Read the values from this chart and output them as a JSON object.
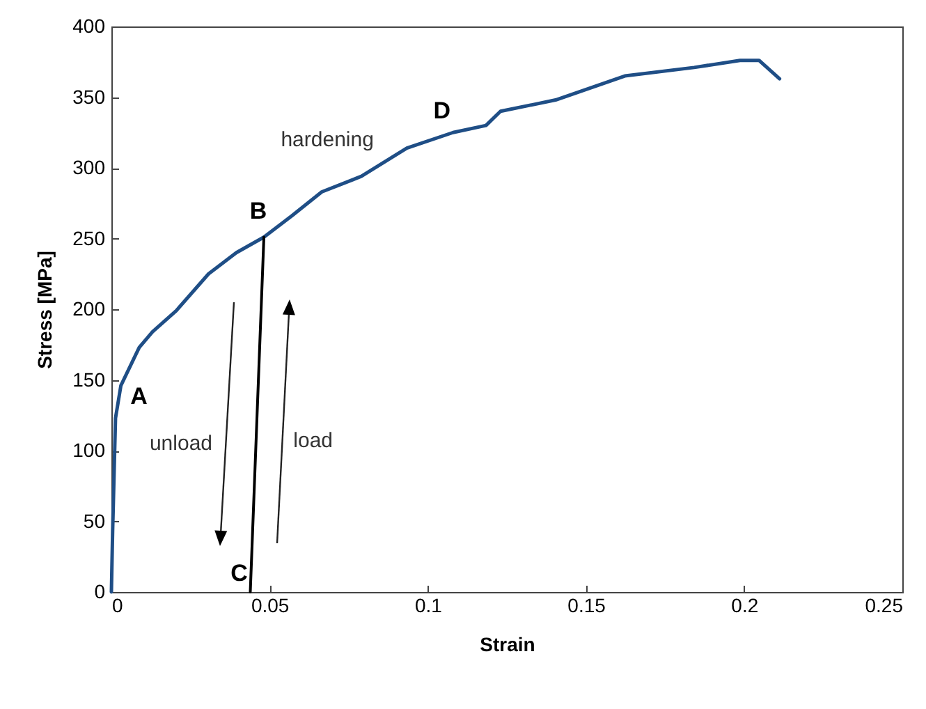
{
  "chart_data": {
    "type": "line",
    "xlabel": "Strain",
    "ylabel": "Stress [MPa]",
    "xlim": [
      0,
      0.25
    ],
    "xticks": [
      0,
      0.05,
      0.1,
      0.15,
      0.2,
      0.25
    ],
    "ylim": [
      0,
      400
    ],
    "yticks": [
      0,
      50,
      100,
      150,
      200,
      250,
      300,
      350,
      400
    ],
    "grid": false,
    "marker": "none",
    "line_style": "solid",
    "series": [
      {
        "color": "#1f4e86",
        "x": [
          0,
          0.0004,
          0.0013,
          0.003,
          0.0088,
          0.013,
          0.0205,
          0.0307,
          0.0395,
          0.0482,
          0.057,
          0.0665,
          0.079,
          0.0934,
          0.108,
          0.1184,
          0.123,
          0.1404,
          0.1623,
          0.1842,
          0.1987,
          0.2047,
          0.2112
        ],
        "values": [
          0,
          44,
          123,
          146,
          173,
          184,
          199,
          225,
          240,
          251,
          266,
          283,
          294,
          314,
          325,
          330,
          340,
          348,
          365,
          371,
          376,
          376,
          363
        ]
      },
      {
        "color": "#000000",
        "x": [
          0.0439,
          0.0482
        ],
        "values": [
          0,
          251
        ]
      }
    ],
    "annotations": [
      {
        "text": "A",
        "x": 0.003,
        "y": 146
      },
      {
        "text": "B",
        "x": 0.0482,
        "y": 251
      },
      {
        "text": "C",
        "x": 0.0439,
        "y": 0
      },
      {
        "text": "D",
        "x": 0.108,
        "y": 325
      },
      "hardening",
      "unload",
      "load"
    ]
  }
}
